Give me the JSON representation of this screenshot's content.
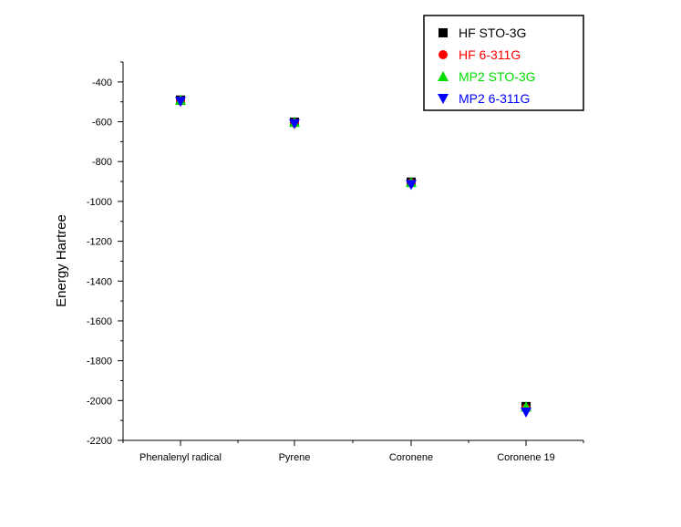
{
  "chart_data": {
    "type": "scatter",
    "title": "",
    "xlabel": "",
    "ylabel": "Energy Hartree",
    "categories": [
      "Phenalenyl radical",
      "Pyrene",
      "Coronene",
      "Coronene 19"
    ],
    "ylim": [
      -2200,
      -300
    ],
    "yticks": [
      -400,
      -600,
      -800,
      -1000,
      -1200,
      -1400,
      -1600,
      -1800,
      -2000,
      -2200
    ],
    "grid": false,
    "legend_position": "top-right",
    "series": [
      {
        "name": "HF STO-3G",
        "color": "#000000",
        "marker": "square",
        "values": [
          -491,
          -602,
          -903,
          -2030
        ]
      },
      {
        "name": "HF 6-311G",
        "color": "#ff0000",
        "marker": "circle",
        "values": [
          -495,
          -606,
          -908,
          -2040
        ]
      },
      {
        "name": "MP2 STO-3G",
        "color": "#00dd00",
        "marker": "triangle-up",
        "values": [
          -492,
          -603,
          -905,
          -2032
        ]
      },
      {
        "name": "MP2 6-311G",
        "color": "#0000ff",
        "marker": "triangle-down",
        "values": [
          -498,
          -610,
          -915,
          -2058
        ]
      }
    ]
  }
}
